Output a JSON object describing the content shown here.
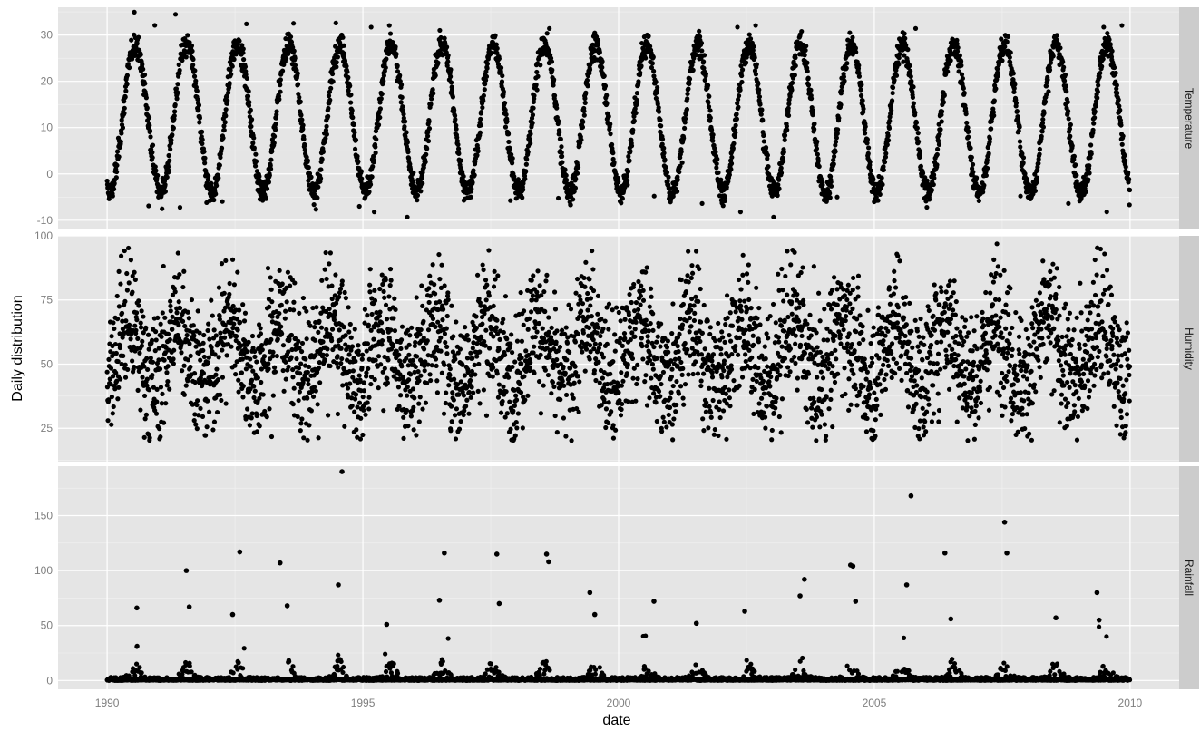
{
  "chart_data": {
    "type": "scatter",
    "layout": "faceted, one panel per variable, shared x axis, free y axes",
    "xlabel": "date",
    "ylabel": "Daily distribution",
    "x_ticks": [
      "1990",
      "1995",
      "2000",
      "2005",
      "2010"
    ],
    "xlim": [
      "1990-01-01",
      "2010-01-01"
    ],
    "grid": true,
    "legend": "none",
    "point_color": "#000000",
    "panel_background": "#e5e5e5",
    "strip_background": "#cccccc",
    "panels": [
      {
        "name": "Temperature",
        "ylim": [
          -12,
          36
        ],
        "y_ticks": [
          "-10",
          "0",
          "10",
          "20",
          "30"
        ],
        "pattern": "annual sinusoid, winter lows about -4 (extremes near -10), summer highs about 28 (extremes near 35)",
        "annual_min": -4,
        "annual_max": 28,
        "extreme_min": -10,
        "extreme_max": 35
      },
      {
        "name": "Humidity",
        "ylim": [
          12,
          100
        ],
        "y_ticks": [
          "25",
          "50",
          "75",
          "100"
        ],
        "pattern": "widely scattered between about 15 and 100, seasonal bands, wettest in mid-year",
        "typical_range": [
          20,
          97
        ]
      },
      {
        "name": "Rainfall",
        "ylim": [
          -8,
          195
        ],
        "y_ticks": [
          "0",
          "50",
          "100",
          "150"
        ],
        "pattern": "mostly 0-10 with summer spikes; largest events listed below",
        "notable_events": [
          {
            "x": "1990-08-01",
            "y": 66
          },
          {
            "x": "1991-07-20",
            "y": 100
          },
          {
            "x": "1991-08-10",
            "y": 67
          },
          {
            "x": "1992-06-15",
            "y": 60
          },
          {
            "x": "1992-08-05",
            "y": 117
          },
          {
            "x": "1993-05-20",
            "y": 107
          },
          {
            "x": "1993-07-10",
            "y": 68
          },
          {
            "x": "1994-07-10",
            "y": 87
          },
          {
            "x": "1994-08-05",
            "y": 190
          },
          {
            "x": "1995-06-20",
            "y": 51
          },
          {
            "x": "1996-07-01",
            "y": 73
          },
          {
            "x": "1996-08-05",
            "y": 116
          },
          {
            "x": "1997-08-15",
            "y": 115
          },
          {
            "x": "1997-09-01",
            "y": 70
          },
          {
            "x": "1998-08-05",
            "y": 115
          },
          {
            "x": "1998-08-20",
            "y": 108
          },
          {
            "x": "1999-06-10",
            "y": 80
          },
          {
            "x": "1999-07-15",
            "y": 60
          },
          {
            "x": "2000-09-10",
            "y": 72
          },
          {
            "x": "2001-07-10",
            "y": 52
          },
          {
            "x": "2002-06-20",
            "y": 63
          },
          {
            "x": "2003-07-20",
            "y": 77
          },
          {
            "x": "2003-08-20",
            "y": 92
          },
          {
            "x": "2004-07-15",
            "y": 105
          },
          {
            "x": "2004-08-01",
            "y": 104
          },
          {
            "x": "2004-08-20",
            "y": 72
          },
          {
            "x": "2005-08-20",
            "y": 87
          },
          {
            "x": "2005-09-20",
            "y": 168
          },
          {
            "x": "2006-05-20",
            "y": 116
          },
          {
            "x": "2006-07-01",
            "y": 56
          },
          {
            "x": "2007-07-20",
            "y": 144
          },
          {
            "x": "2007-08-05",
            "y": 116
          },
          {
            "x": "2008-07-20",
            "y": 57
          },
          {
            "x": "2009-05-10",
            "y": 80
          },
          {
            "x": "2009-05-25",
            "y": 55
          }
        ]
      }
    ]
  }
}
